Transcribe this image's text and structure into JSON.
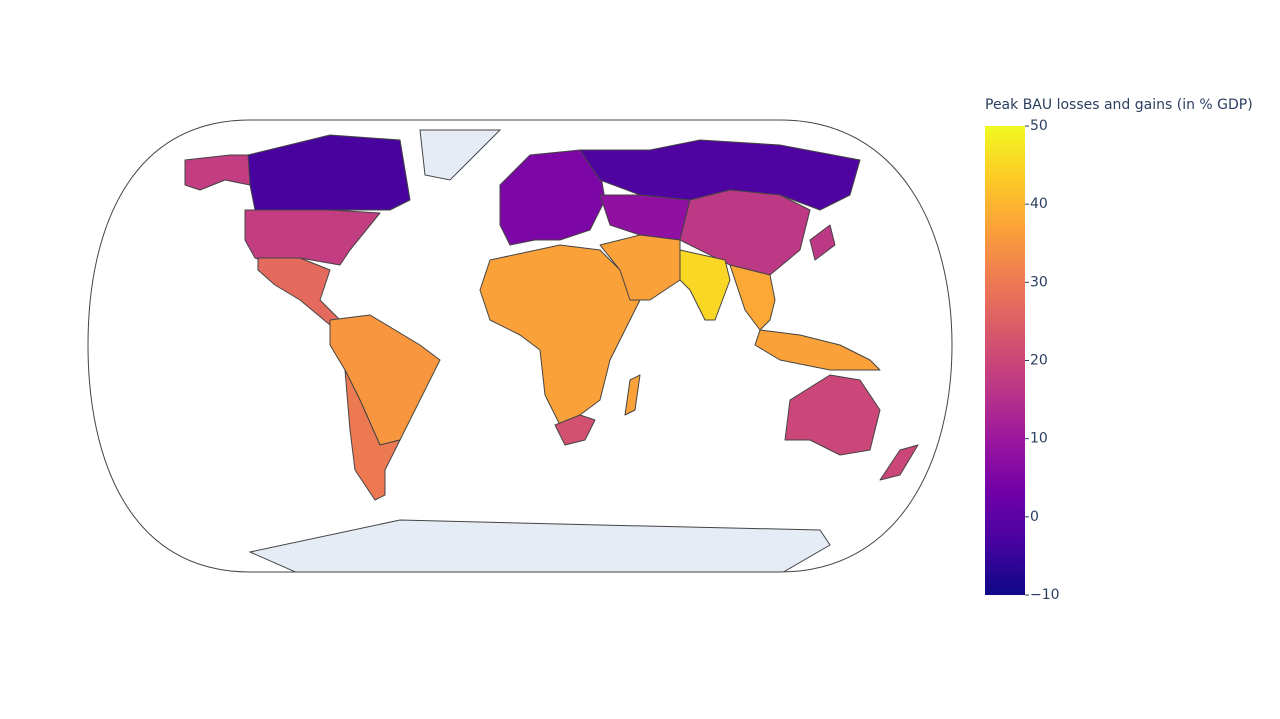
{
  "chart_data": {
    "type": "choropleth",
    "values": [
      18,
      -3,
      18,
      27,
      35,
      30,
      5,
      -2,
      8,
      17,
      17,
      37,
      22,
      37,
      37,
      45,
      38,
      37,
      20,
      20
    ],
    "colorscale": [
      "#0d0887",
      "#46039f",
      "#7201a8",
      "#9c179e",
      "#bd3786",
      "#d8576b",
      "#ed7953",
      "#fb9f3a",
      "#fdca26",
      "#f0f921"
    ],
    "colorbar": {
      "title": "Peak BAU losses and gains (in % GDP)",
      "lim": [
        -10,
        50
      ],
      "ticks": [
        {
          "value": -10,
          "label": "−10"
        },
        0,
        10,
        20,
        30,
        40,
        50
      ]
    }
  }
}
